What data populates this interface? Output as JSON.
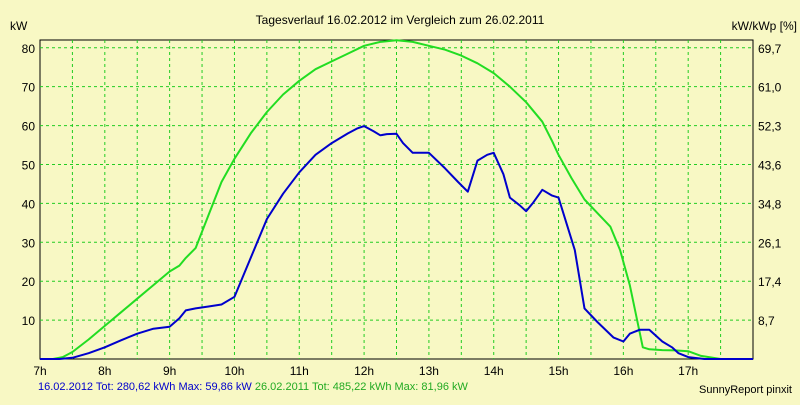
{
  "chart_data": {
    "type": "line",
    "title": "Tagesverlauf 16.02.2012 im Vergleich zum 26.02.2011",
    "ylabel_left": "kW",
    "ylabel_right": "kW/kWp [%]",
    "xlim": [
      7,
      18
    ],
    "ylim": [
      0,
      82
    ],
    "grid": true,
    "x_ticks": [
      {
        "v": 7,
        "label": "7h"
      },
      {
        "v": 8,
        "label": "8h"
      },
      {
        "v": 9,
        "label": "9h"
      },
      {
        "v": 10,
        "label": "10h"
      },
      {
        "v": 11,
        "label": "11h"
      },
      {
        "v": 12,
        "label": "12h"
      },
      {
        "v": 13,
        "label": "13h"
      },
      {
        "v": 14,
        "label": "14h"
      },
      {
        "v": 15,
        "label": "15h"
      },
      {
        "v": 16,
        "label": "16h"
      },
      {
        "v": 17,
        "label": "17h"
      }
    ],
    "y_ticks_left": [
      {
        "v": 10,
        "label": "10"
      },
      {
        "v": 20,
        "label": "20"
      },
      {
        "v": 30,
        "label": "30"
      },
      {
        "v": 40,
        "label": "40"
      },
      {
        "v": 50,
        "label": "50"
      },
      {
        "v": 60,
        "label": "60"
      },
      {
        "v": 70,
        "label": "70"
      },
      {
        "v": 80,
        "label": "80"
      }
    ],
    "y_ticks_right": [
      {
        "v": 10,
        "label": "8,7"
      },
      {
        "v": 20,
        "label": "17,4"
      },
      {
        "v": 30,
        "label": "26,1"
      },
      {
        "v": 40,
        "label": "34,8"
      },
      {
        "v": 50,
        "label": "43,6"
      },
      {
        "v": 60,
        "label": "52,3"
      },
      {
        "v": 70,
        "label": "61,0"
      },
      {
        "v": 80,
        "label": "69,7"
      }
    ],
    "series": [
      {
        "name": "16.02.2012",
        "color": "#0000cc",
        "x": [
          7.0,
          7.3,
          7.5,
          7.75,
          8.0,
          8.25,
          8.5,
          8.75,
          9.0,
          9.15,
          9.25,
          9.4,
          9.6,
          9.8,
          10.0,
          10.25,
          10.5,
          10.75,
          11.0,
          11.25,
          11.5,
          11.75,
          11.9,
          12.0,
          12.15,
          12.25,
          12.35,
          12.5,
          12.6,
          12.75,
          13.0,
          13.25,
          13.45,
          13.6,
          13.75,
          13.9,
          14.0,
          14.15,
          14.25,
          14.4,
          14.5,
          14.6,
          14.75,
          14.9,
          15.0,
          15.25,
          15.4,
          15.6,
          15.85,
          16.0,
          16.1,
          16.25,
          16.4,
          16.6,
          16.75,
          16.85,
          17.0,
          17.25,
          17.5,
          18.0
        ],
        "y": [
          0,
          0,
          0.3,
          1.5,
          3,
          4.8,
          6.5,
          7.8,
          8.3,
          10.5,
          12.5,
          13,
          13.5,
          14,
          16,
          26,
          36,
          42.5,
          48,
          52.5,
          55.5,
          58,
          59.3,
          59.86,
          58.5,
          57.5,
          57.8,
          57.9,
          55.5,
          53,
          53,
          49,
          45.5,
          43,
          51,
          52.5,
          53,
          47.5,
          41.5,
          39.5,
          38,
          40,
          43.5,
          42,
          41.5,
          28,
          13,
          9.5,
          5.5,
          4.5,
          6.5,
          7.5,
          7.5,
          4.5,
          3,
          1.5,
          0.5,
          0,
          0,
          0
        ]
      },
      {
        "name": "26.02.2011",
        "color": "#22dd22",
        "x": [
          7.0,
          7.2,
          7.35,
          7.5,
          7.75,
          8.0,
          8.25,
          8.5,
          8.75,
          9.0,
          9.15,
          9.25,
          9.4,
          9.6,
          9.8,
          10.0,
          10.25,
          10.5,
          10.75,
          11.0,
          11.25,
          11.5,
          11.75,
          12.0,
          12.25,
          12.5,
          12.75,
          13.0,
          13.25,
          13.5,
          13.75,
          14.0,
          14.25,
          14.5,
          14.75,
          14.9,
          15.0,
          15.2,
          15.4,
          15.6,
          15.8,
          15.95,
          16.1,
          16.3,
          16.4,
          16.6,
          16.8,
          17.0,
          17.2,
          17.5,
          18.0
        ],
        "y": [
          0,
          0,
          0.5,
          1.8,
          5,
          8.5,
          12,
          15.5,
          19,
          22.5,
          24,
          26,
          28.5,
          37,
          45.5,
          51.5,
          58,
          63.5,
          68,
          71.5,
          74.5,
          76.5,
          78.5,
          80.5,
          81.5,
          81.96,
          81.5,
          80.5,
          79.5,
          78,
          76,
          73.5,
          70,
          66,
          61,
          56,
          52.5,
          46.5,
          41,
          37.5,
          34,
          28,
          19,
          3,
          2.5,
          2.3,
          2.2,
          2,
          0.8,
          0,
          0
        ]
      }
    ],
    "footer": {
      "s1_label": "16.02.2012 Tot: 280,62 kWh Max: 59,86 kW",
      "s2_label": "26.02.2011 Tot: 485,22 kWh Max: 81,96 kW"
    },
    "credit": "SunnyReport pinxit"
  }
}
